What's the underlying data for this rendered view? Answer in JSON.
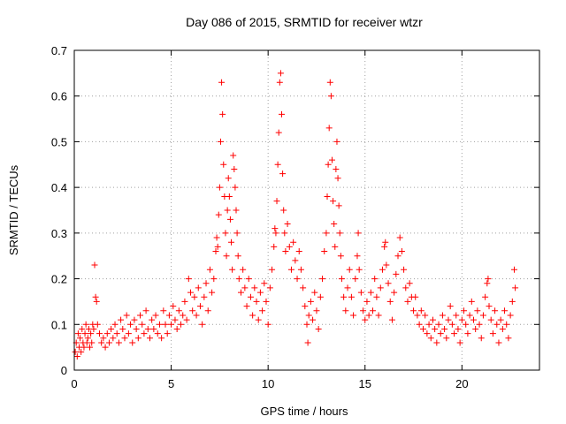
{
  "chart_data": {
    "type": "scatter",
    "title": "Day 086 of 2015, SRMTID for receiver wtzr",
    "xlabel": "GPS time / hours",
    "ylabel": "SRMTID / TECUs",
    "xlim": [
      0,
      24
    ],
    "ylim": [
      0,
      0.7
    ],
    "xticks": [
      0,
      5,
      10,
      15,
      20
    ],
    "yticks": [
      0,
      0.1,
      0.2,
      0.3,
      0.4,
      0.5,
      0.6,
      0.7
    ],
    "xtick_labels": [
      "0",
      "5",
      "10",
      "15",
      "20"
    ],
    "ytick_labels": [
      "0",
      "0.1",
      "0.2",
      "0.3",
      "0.4",
      "0.5",
      "0.6",
      "0.7"
    ],
    "grid": true,
    "marker": "plus",
    "color": "#ff0000",
    "series": [
      {
        "name": "SRMTID",
        "points": [
          [
            0.05,
            0.04
          ],
          [
            0.1,
            0.06
          ],
          [
            0.15,
            0.03
          ],
          [
            0.2,
            0.08
          ],
          [
            0.25,
            0.05
          ],
          [
            0.3,
            0.07
          ],
          [
            0.35,
            0.04
          ],
          [
            0.4,
            0.09
          ],
          [
            0.45,
            0.06
          ],
          [
            0.5,
            0.05
          ],
          [
            0.55,
            0.08
          ],
          [
            0.6,
            0.1
          ],
          [
            0.65,
            0.06
          ],
          [
            0.7,
            0.07
          ],
          [
            0.75,
            0.09
          ],
          [
            0.8,
            0.05
          ],
          [
            0.85,
            0.08
          ],
          [
            0.9,
            0.06
          ],
          [
            0.95,
            0.1
          ],
          [
            1.0,
            0.09
          ],
          [
            1.05,
            0.23
          ],
          [
            1.1,
            0.16
          ],
          [
            1.15,
            0.15
          ],
          [
            1.2,
            0.1
          ],
          [
            1.3,
            0.08
          ],
          [
            1.4,
            0.06
          ],
          [
            1.5,
            0.07
          ],
          [
            1.6,
            0.05
          ],
          [
            1.7,
            0.08
          ],
          [
            1.8,
            0.06
          ],
          [
            1.9,
            0.09
          ],
          [
            2.0,
            0.07
          ],
          [
            2.1,
            0.1
          ],
          [
            2.2,
            0.08
          ],
          [
            2.3,
            0.06
          ],
          [
            2.4,
            0.11
          ],
          [
            2.5,
            0.09
          ],
          [
            2.6,
            0.07
          ],
          [
            2.7,
            0.12
          ],
          [
            2.8,
            0.08
          ],
          [
            2.9,
            0.1
          ],
          [
            3.0,
            0.06
          ],
          [
            3.1,
            0.11
          ],
          [
            3.2,
            0.09
          ],
          [
            3.3,
            0.07
          ],
          [
            3.4,
            0.12
          ],
          [
            3.5,
            0.1
          ],
          [
            3.6,
            0.08
          ],
          [
            3.7,
            0.13
          ],
          [
            3.8,
            0.09
          ],
          [
            3.9,
            0.07
          ],
          [
            4.0,
            0.11
          ],
          [
            4.1,
            0.09
          ],
          [
            4.2,
            0.12
          ],
          [
            4.3,
            0.08
          ],
          [
            4.4,
            0.1
          ],
          [
            4.5,
            0.07
          ],
          [
            4.6,
            0.13
          ],
          [
            4.7,
            0.1
          ],
          [
            4.8,
            0.08
          ],
          [
            4.9,
            0.12
          ],
          [
            5.0,
            0.1
          ],
          [
            5.1,
            0.14
          ],
          [
            5.2,
            0.11
          ],
          [
            5.3,
            0.09
          ],
          [
            5.4,
            0.13
          ],
          [
            5.5,
            0.1
          ],
          [
            5.6,
            0.12
          ],
          [
            5.7,
            0.15
          ],
          [
            5.8,
            0.11
          ],
          [
            5.9,
            0.2
          ],
          [
            6.0,
            0.17
          ],
          [
            6.1,
            0.13
          ],
          [
            6.2,
            0.16
          ],
          [
            6.3,
            0.12
          ],
          [
            6.4,
            0.18
          ],
          [
            6.5,
            0.14
          ],
          [
            6.6,
            0.1
          ],
          [
            6.7,
            0.16
          ],
          [
            6.8,
            0.19
          ],
          [
            6.9,
            0.13
          ],
          [
            7.0,
            0.22
          ],
          [
            7.1,
            0.17
          ],
          [
            7.2,
            0.2
          ],
          [
            7.3,
            0.26
          ],
          [
            7.35,
            0.29
          ],
          [
            7.4,
            0.27
          ],
          [
            7.45,
            0.34
          ],
          [
            7.5,
            0.4
          ],
          [
            7.55,
            0.5
          ],
          [
            7.6,
            0.63
          ],
          [
            7.65,
            0.56
          ],
          [
            7.7,
            0.45
          ],
          [
            7.75,
            0.38
          ],
          [
            7.8,
            0.3
          ],
          [
            7.85,
            0.25
          ],
          [
            7.9,
            0.35
          ],
          [
            7.95,
            0.42
          ],
          [
            8.0,
            0.38
          ],
          [
            8.05,
            0.33
          ],
          [
            8.1,
            0.28
          ],
          [
            8.15,
            0.22
          ],
          [
            8.2,
            0.47
          ],
          [
            8.25,
            0.44
          ],
          [
            8.3,
            0.4
          ],
          [
            8.35,
            0.35
          ],
          [
            8.4,
            0.3
          ],
          [
            8.45,
            0.25
          ],
          [
            8.5,
            0.2
          ],
          [
            8.6,
            0.17
          ],
          [
            8.7,
            0.22
          ],
          [
            8.8,
            0.18
          ],
          [
            8.9,
            0.14
          ],
          [
            9.0,
            0.2
          ],
          [
            9.1,
            0.16
          ],
          [
            9.2,
            0.12
          ],
          [
            9.3,
            0.18
          ],
          [
            9.4,
            0.15
          ],
          [
            9.5,
            0.11
          ],
          [
            9.6,
            0.17
          ],
          [
            9.7,
            0.13
          ],
          [
            9.8,
            0.19
          ],
          [
            9.9,
            0.15
          ],
          [
            10.0,
            0.1
          ],
          [
            10.1,
            0.18
          ],
          [
            10.2,
            0.22
          ],
          [
            10.3,
            0.27
          ],
          [
            10.35,
            0.31
          ],
          [
            10.4,
            0.3
          ],
          [
            10.45,
            0.37
          ],
          [
            10.5,
            0.45
          ],
          [
            10.55,
            0.52
          ],
          [
            10.6,
            0.63
          ],
          [
            10.65,
            0.65
          ],
          [
            10.7,
            0.56
          ],
          [
            10.75,
            0.43
          ],
          [
            10.8,
            0.35
          ],
          [
            10.85,
            0.3
          ],
          [
            10.9,
            0.26
          ],
          [
            11.0,
            0.32
          ],
          [
            11.1,
            0.27
          ],
          [
            11.2,
            0.22
          ],
          [
            11.3,
            0.28
          ],
          [
            11.4,
            0.24
          ],
          [
            11.5,
            0.2
          ],
          [
            11.6,
            0.26
          ],
          [
            11.7,
            0.22
          ],
          [
            11.8,
            0.18
          ],
          [
            11.9,
            0.14
          ],
          [
            12.0,
            0.1
          ],
          [
            12.05,
            0.06
          ],
          [
            12.1,
            0.12
          ],
          [
            12.2,
            0.15
          ],
          [
            12.3,
            0.11
          ],
          [
            12.4,
            0.17
          ],
          [
            12.5,
            0.13
          ],
          [
            12.6,
            0.09
          ],
          [
            12.7,
            0.16
          ],
          [
            12.8,
            0.2
          ],
          [
            12.9,
            0.26
          ],
          [
            13.0,
            0.3
          ],
          [
            13.05,
            0.38
          ],
          [
            13.1,
            0.45
          ],
          [
            13.15,
            0.53
          ],
          [
            13.2,
            0.63
          ],
          [
            13.25,
            0.6
          ],
          [
            13.3,
            0.46
          ],
          [
            13.35,
            0.37
          ],
          [
            13.4,
            0.32
          ],
          [
            13.45,
            0.27
          ],
          [
            13.5,
            0.44
          ],
          [
            13.55,
            0.5
          ],
          [
            13.6,
            0.42
          ],
          [
            13.65,
            0.36
          ],
          [
            13.7,
            0.3
          ],
          [
            13.75,
            0.25
          ],
          [
            13.8,
            0.2
          ],
          [
            13.9,
            0.16
          ],
          [
            14.0,
            0.13
          ],
          [
            14.1,
            0.18
          ],
          [
            14.2,
            0.22
          ],
          [
            14.3,
            0.16
          ],
          [
            14.4,
            0.12
          ],
          [
            14.5,
            0.2
          ],
          [
            14.6,
            0.25
          ],
          [
            14.65,
            0.3
          ],
          [
            14.7,
            0.22
          ],
          [
            14.8,
            0.17
          ],
          [
            14.9,
            0.13
          ],
          [
            15.0,
            0.11
          ],
          [
            15.1,
            0.15
          ],
          [
            15.2,
            0.12
          ],
          [
            15.3,
            0.17
          ],
          [
            15.4,
            0.13
          ],
          [
            15.5,
            0.2
          ],
          [
            15.6,
            0.16
          ],
          [
            15.7,
            0.12
          ],
          [
            15.8,
            0.18
          ],
          [
            15.9,
            0.22
          ],
          [
            16.0,
            0.27
          ],
          [
            16.05,
            0.28
          ],
          [
            16.1,
            0.23
          ],
          [
            16.2,
            0.19
          ],
          [
            16.3,
            0.15
          ],
          [
            16.4,
            0.11
          ],
          [
            16.5,
            0.17
          ],
          [
            16.6,
            0.21
          ],
          [
            16.7,
            0.25
          ],
          [
            16.8,
            0.29
          ],
          [
            16.9,
            0.26
          ],
          [
            17.0,
            0.22
          ],
          [
            17.1,
            0.18
          ],
          [
            17.2,
            0.15
          ],
          [
            17.3,
            0.19
          ],
          [
            17.4,
            0.16
          ],
          [
            17.5,
            0.13
          ],
          [
            17.6,
            0.16
          ],
          [
            17.7,
            0.12
          ],
          [
            17.8,
            0.1
          ],
          [
            17.9,
            0.13
          ],
          [
            18.0,
            0.09
          ],
          [
            18.1,
            0.12
          ],
          [
            18.2,
            0.08
          ],
          [
            18.3,
            0.1
          ],
          [
            18.4,
            0.07
          ],
          [
            18.5,
            0.11
          ],
          [
            18.6,
            0.09
          ],
          [
            18.7,
            0.06
          ],
          [
            18.8,
            0.1
          ],
          [
            18.9,
            0.08
          ],
          [
            19.0,
            0.12
          ],
          [
            19.1,
            0.09
          ],
          [
            19.2,
            0.07
          ],
          [
            19.3,
            0.11
          ],
          [
            19.4,
            0.14
          ],
          [
            19.5,
            0.1
          ],
          [
            19.6,
            0.08
          ],
          [
            19.7,
            0.12
          ],
          [
            19.8,
            0.09
          ],
          [
            19.9,
            0.06
          ],
          [
            20.0,
            0.11
          ],
          [
            20.1,
            0.13
          ],
          [
            20.2,
            0.1
          ],
          [
            20.3,
            0.08
          ],
          [
            20.4,
            0.12
          ],
          [
            20.5,
            0.15
          ],
          [
            20.6,
            0.11
          ],
          [
            20.7,
            0.09
          ],
          [
            20.8,
            0.13
          ],
          [
            20.9,
            0.1
          ],
          [
            21.0,
            0.07
          ],
          [
            21.1,
            0.12
          ],
          [
            21.2,
            0.16
          ],
          [
            21.3,
            0.19
          ],
          [
            21.35,
            0.2
          ],
          [
            21.4,
            0.14
          ],
          [
            21.5,
            0.11
          ],
          [
            21.6,
            0.08
          ],
          [
            21.7,
            0.13
          ],
          [
            21.8,
            0.1
          ],
          [
            21.9,
            0.06
          ],
          [
            22.0,
            0.11
          ],
          [
            22.1,
            0.09
          ],
          [
            22.2,
            0.13
          ],
          [
            22.3,
            0.1
          ],
          [
            22.4,
            0.07
          ],
          [
            22.5,
            0.12
          ],
          [
            22.6,
            0.15
          ],
          [
            22.7,
            0.22
          ],
          [
            22.75,
            0.18
          ]
        ]
      }
    ]
  }
}
